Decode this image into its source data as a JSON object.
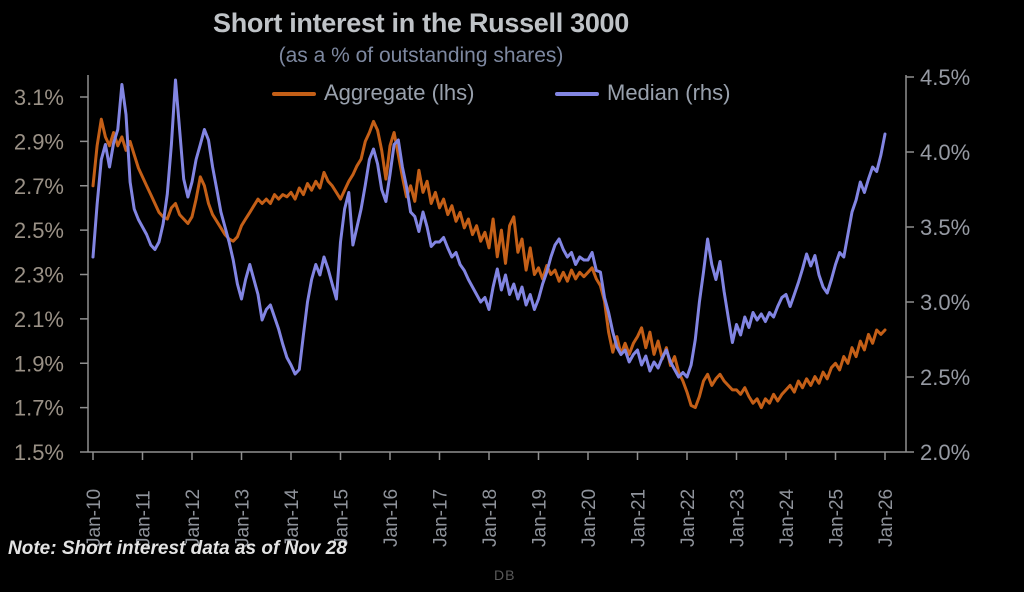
{
  "header": {
    "title": "Short interest in the Russell 3000",
    "subtitle": "(as a % of outstanding shares)"
  },
  "legend": {
    "aggregate": {
      "label": "Aggregate (lhs)",
      "color": "#c45f17"
    },
    "median": {
      "label": "Median (rhs)",
      "color": "#8285e2"
    }
  },
  "note": "Note: Short interest data as of Nov 28",
  "branding": "DB",
  "colors": {
    "background": "#000000",
    "title": "#bfc3c7",
    "subtitle": "#7d88a0",
    "legend_text": "#99a1ad",
    "axis_line": "#8f8f8f",
    "left_tick_text": "#9a9186",
    "right_tick_text": "#969aa3",
    "x_tick_text": "#8f939b",
    "aggregate_line": "#c45f17",
    "median_line": "#8285e2"
  },
  "chart_data": {
    "type": "line",
    "title": "Short interest in the Russell 3000",
    "subtitle": "(as a % of outstanding shares)",
    "grid": false,
    "legend_position": "top",
    "x_start_year": 2010,
    "x_end_year": 2026,
    "x_resolution": "monthly",
    "x_tick_labels": [
      "Jan-10",
      "Jan-11",
      "Jan-12",
      "Jan-13",
      "Jan-14",
      "Jan-15",
      "Jan-16",
      "Jan-17",
      "Jan-18",
      "Jan-19",
      "Jan-20",
      "Jan-21",
      "Jan-22",
      "Jan-23",
      "Jan-24",
      "Jan-25",
      "Jan-26"
    ],
    "left_axis": {
      "series": "Aggregate (lhs)",
      "min": 1.5,
      "max": 3.1,
      "tick_values": [
        3.1,
        2.9,
        2.7,
        2.5,
        2.3,
        2.1,
        1.9,
        1.7,
        1.5
      ],
      "tick_labels": [
        "3.1%",
        "2.9%",
        "2.7%",
        "2.5%",
        "2.3%",
        "2.1%",
        "1.9%",
        "1.7%",
        "1.5%"
      ]
    },
    "right_axis": {
      "series": "Median (rhs)",
      "min": 2.0,
      "max": 4.5,
      "tick_values": [
        4.5,
        4.0,
        3.5,
        3.0,
        2.5,
        2.0
      ],
      "tick_labels": [
        "4.5%",
        "4.0%",
        "3.5%",
        "3.0%",
        "2.5%",
        "2.0%"
      ]
    },
    "series": [
      {
        "name": "Aggregate (lhs)",
        "axis": "left",
        "color": "#c45f17",
        "values": [
          2.7,
          2.88,
          3.0,
          2.92,
          2.88,
          2.94,
          2.88,
          2.92,
          2.86,
          2.9,
          2.84,
          2.78,
          2.74,
          2.7,
          2.66,
          2.62,
          2.58,
          2.56,
          2.55,
          2.6,
          2.62,
          2.57,
          2.55,
          2.53,
          2.56,
          2.64,
          2.74,
          2.7,
          2.62,
          2.57,
          2.54,
          2.51,
          2.48,
          2.46,
          2.45,
          2.47,
          2.52,
          2.55,
          2.58,
          2.61,
          2.64,
          2.62,
          2.64,
          2.62,
          2.66,
          2.64,
          2.66,
          2.65,
          2.67,
          2.64,
          2.69,
          2.66,
          2.71,
          2.68,
          2.72,
          2.69,
          2.76,
          2.72,
          2.7,
          2.67,
          2.64,
          2.68,
          2.72,
          2.75,
          2.79,
          2.82,
          2.9,
          2.94,
          2.99,
          2.95,
          2.86,
          2.73,
          2.88,
          2.94,
          2.84,
          2.74,
          2.65,
          2.7,
          2.63,
          2.77,
          2.67,
          2.72,
          2.62,
          2.67,
          2.6,
          2.64,
          2.57,
          2.61,
          2.54,
          2.58,
          2.51,
          2.55,
          2.48,
          2.52,
          2.45,
          2.49,
          2.42,
          2.55,
          2.38,
          2.5,
          2.35,
          2.52,
          2.56,
          2.4,
          2.46,
          2.32,
          2.42,
          2.3,
          2.33,
          2.28,
          2.34,
          2.3,
          2.32,
          2.27,
          2.31,
          2.27,
          2.32,
          2.28,
          2.31,
          2.29,
          2.31,
          2.33,
          2.28,
          2.25,
          2.18,
          2.04,
          1.95,
          2.02,
          1.94,
          1.99,
          1.94,
          1.99,
          2.02,
          2.06,
          1.97,
          2.04,
          1.94,
          2.0,
          1.92,
          1.97,
          1.89,
          1.93,
          1.86,
          1.82,
          1.77,
          1.71,
          1.7,
          1.75,
          1.82,
          1.85,
          1.8,
          1.83,
          1.85,
          1.82,
          1.8,
          1.78,
          1.78,
          1.76,
          1.79,
          1.75,
          1.72,
          1.74,
          1.7,
          1.74,
          1.72,
          1.76,
          1.73,
          1.76,
          1.78,
          1.8,
          1.77,
          1.82,
          1.79,
          1.83,
          1.8,
          1.84,
          1.81,
          1.86,
          1.83,
          1.88,
          1.9,
          1.87,
          1.93,
          1.9,
          1.97,
          1.93,
          2.0,
          1.96,
          2.03,
          1.99,
          2.05,
          2.03,
          2.05
        ]
      },
      {
        "name": "Median (rhs)",
        "axis": "right",
        "color": "#8285e2",
        "values": [
          3.3,
          3.65,
          3.95,
          4.05,
          3.9,
          4.06,
          4.15,
          4.45,
          4.25,
          3.8,
          3.62,
          3.55,
          3.5,
          3.45,
          3.38,
          3.35,
          3.4,
          3.52,
          3.72,
          4.05,
          4.48,
          4.15,
          3.82,
          3.7,
          3.8,
          3.95,
          4.05,
          4.15,
          4.08,
          3.9,
          3.75,
          3.6,
          3.5,
          3.4,
          3.28,
          3.12,
          3.02,
          3.15,
          3.25,
          3.15,
          3.05,
          2.88,
          2.95,
          2.98,
          2.9,
          2.82,
          2.72,
          2.63,
          2.58,
          2.52,
          2.55,
          2.78,
          3.0,
          3.15,
          3.25,
          3.18,
          3.3,
          3.22,
          3.12,
          3.02,
          3.4,
          3.62,
          3.73,
          3.38,
          3.5,
          3.62,
          3.78,
          3.95,
          4.02,
          3.92,
          3.75,
          3.67,
          3.85,
          4.05,
          4.08,
          3.9,
          3.77,
          3.6,
          3.57,
          3.47,
          3.6,
          3.5,
          3.37,
          3.4,
          3.4,
          3.43,
          3.36,
          3.3,
          3.33,
          3.25,
          3.21,
          3.15,
          3.1,
          3.05,
          3.0,
          3.03,
          2.95,
          3.1,
          3.22,
          3.08,
          3.18,
          3.05,
          3.12,
          3.02,
          3.1,
          2.98,
          3.05,
          2.95,
          3.02,
          3.12,
          3.2,
          3.3,
          3.38,
          3.42,
          3.35,
          3.3,
          3.33,
          3.25,
          3.3,
          3.28,
          3.28,
          3.33,
          3.21,
          3.2,
          3.03,
          2.93,
          2.8,
          2.7,
          2.65,
          2.68,
          2.6,
          2.65,
          2.68,
          2.58,
          2.64,
          2.54,
          2.6,
          2.56,
          2.63,
          2.68,
          2.6,
          2.55,
          2.5,
          2.53,
          2.5,
          2.58,
          2.75,
          3.0,
          3.2,
          3.42,
          3.25,
          3.15,
          3.27,
          3.07,
          2.9,
          2.73,
          2.85,
          2.78,
          2.9,
          2.83,
          2.93,
          2.88,
          2.92,
          2.87,
          2.93,
          2.9,
          2.97,
          3.03,
          3.05,
          2.97,
          3.05,
          3.13,
          3.22,
          3.32,
          3.24,
          3.31,
          3.18,
          3.1,
          3.06,
          3.15,
          3.25,
          3.33,
          3.3,
          3.45,
          3.6,
          3.68,
          3.8,
          3.73,
          3.82,
          3.9,
          3.87,
          3.98,
          4.12
        ]
      }
    ]
  }
}
